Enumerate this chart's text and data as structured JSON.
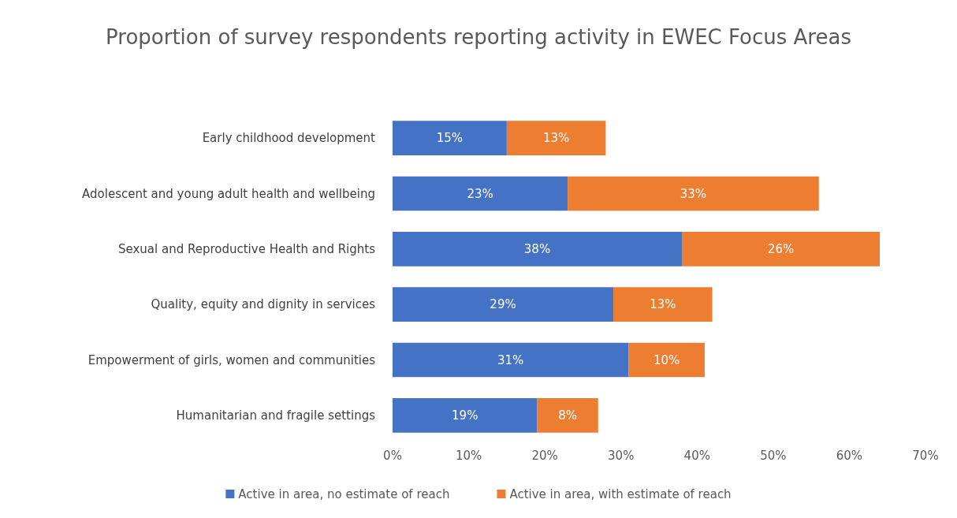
{
  "chart_data": {
    "type": "bar",
    "orientation": "horizontal",
    "stacked": true,
    "title": "Proportion of survey respondents reporting activity in EWEC Focus Areas",
    "categories": [
      "Early childhood development",
      "Adolescent and young adult health and wellbeing",
      "Sexual and Reproductive Health and Rights",
      "Quality, equity and dignity in services",
      "Empowerment of girls, women and communities",
      "Humanitarian and fragile settings"
    ],
    "series": [
      {
        "name": "Active in area, no estimate of reach",
        "color": "#4472c4",
        "values": [
          15,
          23,
          38,
          29,
          31,
          19
        ],
        "value_labels": [
          "15%",
          "23%",
          "38%",
          "29%",
          "31%",
          "19%"
        ]
      },
      {
        "name": "Active in area, with estimate of reach",
        "color": "#ed7d31",
        "values": [
          13,
          33,
          26,
          13,
          10,
          8
        ],
        "value_labels": [
          "13%",
          "33%",
          "26%",
          "13%",
          "10%",
          "8%"
        ]
      }
    ],
    "xlim": [
      0,
      70
    ],
    "xticks": [
      {
        "value": 0,
        "label": "0%"
      },
      {
        "value": 10,
        "label": "10%"
      },
      {
        "value": 20,
        "label": "20%"
      },
      {
        "value": 30,
        "label": "30%"
      },
      {
        "value": 40,
        "label": "40%"
      },
      {
        "value": 50,
        "label": "50%"
      },
      {
        "value": 60,
        "label": "60%"
      },
      {
        "value": 70,
        "label": "70%"
      }
    ],
    "grid": false,
    "legend": "bottom"
  }
}
